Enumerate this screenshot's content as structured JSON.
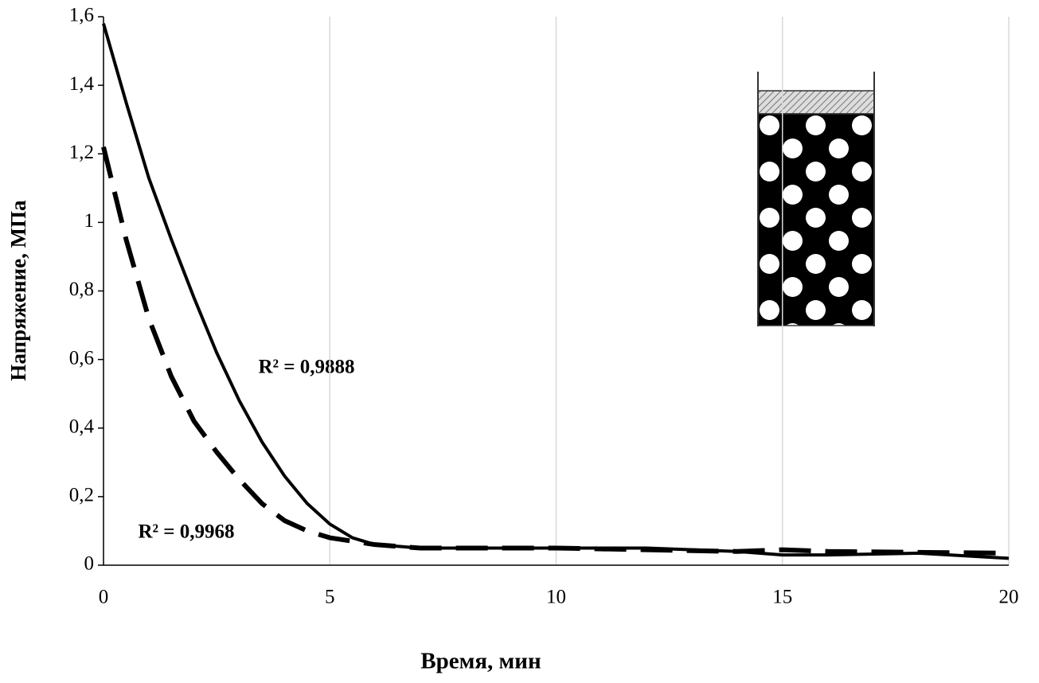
{
  "chart_data": {
    "type": "line",
    "x_label": "Время, мин",
    "y_label": "Напряжение, МПа",
    "annotations": [
      "R² = 0,9888",
      "R² = 0,9968"
    ],
    "xlim": [
      0,
      20
    ],
    "xticks": [
      0,
      5,
      10,
      15,
      20
    ],
    "ylim": [
      0,
      1.6
    ],
    "yticks": [
      0,
      {
        "value": 0.2,
        "label": "0,2"
      },
      {
        "value": 0.4,
        "label": "0,4"
      },
      {
        "value": 0.6,
        "label": "0,6"
      },
      {
        "value": 0.8,
        "label": "0,8"
      },
      1,
      {
        "value": 1.2,
        "label": "1,2"
      },
      {
        "value": 1.4,
        "label": "1,4"
      },
      {
        "value": 1.6,
        "label": "1,6"
      }
    ],
    "grid": "x",
    "series": [
      {
        "color": "#000000",
        "dash": "solid",
        "x": [
          0,
          0.5,
          1,
          1.5,
          2,
          2.5,
          3,
          3.5,
          4,
          4.5,
          5,
          5.5,
          6,
          7,
          8,
          10,
          12,
          14,
          15,
          16,
          18,
          20
        ],
        "values": [
          1.58,
          1.35,
          1.13,
          0.95,
          0.78,
          0.62,
          0.48,
          0.36,
          0.26,
          0.18,
          0.12,
          0.08,
          0.06,
          0.05,
          0.05,
          0.05,
          0.05,
          0.04,
          0.03,
          0.03,
          0.035,
          0.02
        ]
      },
      {
        "color": "#000000",
        "dash": "dashed",
        "x": [
          0,
          0.5,
          1,
          1.5,
          2,
          2.5,
          3,
          3.5,
          4,
          4.5,
          5,
          6,
          7,
          10,
          14,
          15,
          16,
          20
        ],
        "values": [
          1.22,
          0.95,
          0.72,
          0.55,
          0.42,
          0.33,
          0.25,
          0.18,
          0.13,
          0.1,
          0.08,
          0.06,
          0.05,
          0.05,
          0.04,
          0.045,
          0.04,
          0.035
        ]
      }
    ]
  }
}
